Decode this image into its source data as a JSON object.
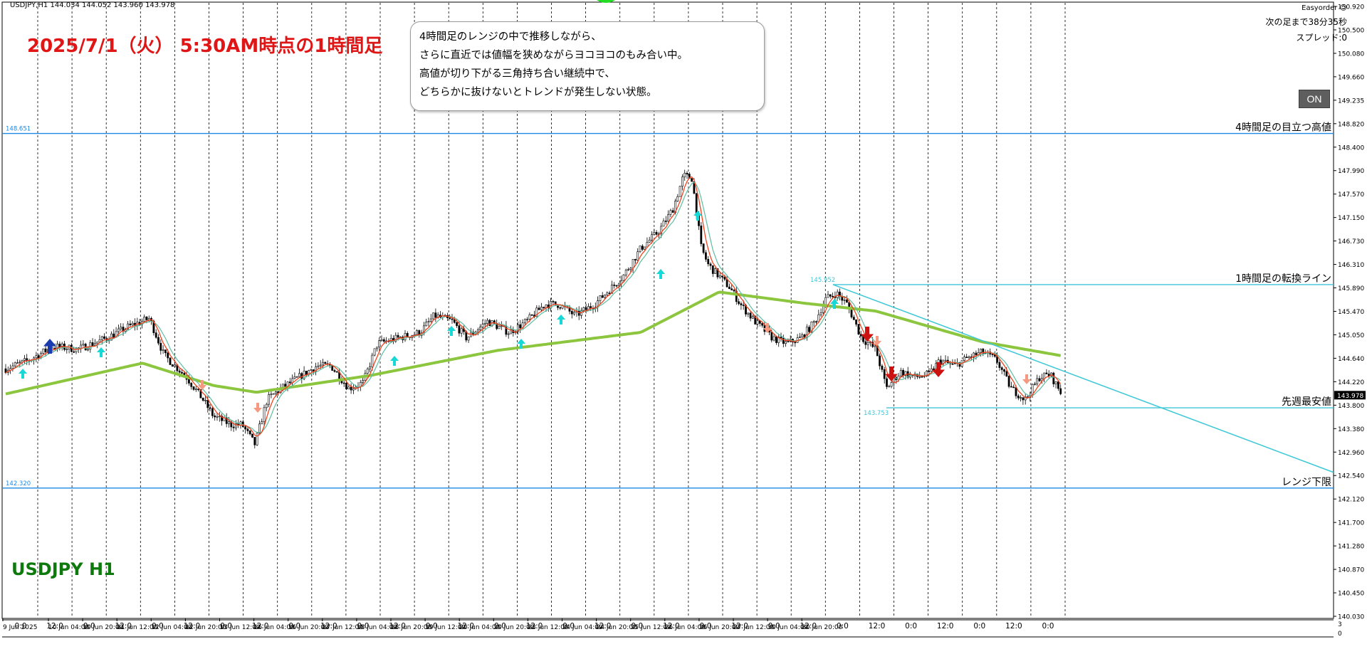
{
  "header": {
    "symbol_info": "USDJPY,H1  144.034 144.052 143.960 143.978",
    "main_title": "2025/7/1（火） 5:30AM時点の1時間足",
    "symbol_label": "USDJPY H1"
  },
  "annotation": {
    "lines": [
      "4時間足のレンジの中で推移しながら、",
      "さらに直近では値幅を狭めながらヨコヨコのもみ合い中。",
      "高値が切り下がる三角持ち合い継続中で、",
      "どちらかに抜けないとトレンドが発生しない状態。"
    ]
  },
  "ea_panel": {
    "name": "Easyorder",
    "next_bar": "次の足まで38分35秒",
    "spread": "スプレッド:0",
    "on_label": "ON"
  },
  "horizontal_lines": [
    {
      "name": "h4-high",
      "price": 148.651,
      "price_label": "148.651",
      "label": "4時間足の目立つ高値",
      "color": "#1e88e5"
    },
    {
      "name": "h1-turn",
      "price": 145.952,
      "price_label": "145.952",
      "label": "1時間足の転換ライン",
      "color": "#3ec7d6"
    },
    {
      "name": "last-week-low",
      "price": 143.753,
      "price_label": "143.753",
      "label": "先週最安値",
      "color": "#3ec7d6"
    },
    {
      "name": "range-low",
      "price": 142.32,
      "price_label": "142.320",
      "label": "レンジ下限",
      "color": "#1e88e5"
    }
  ],
  "current_price": "143.978",
  "price_axis": [
    "150.920",
    "150.500",
    "150.080",
    "149.660",
    "149.235",
    "148.820",
    "148.400",
    "147.990",
    "147.570",
    "147.150",
    "146.730",
    "146.310",
    "145.890",
    "145.470",
    "145.050",
    "144.640",
    "144.220",
    "143.800",
    "143.380",
    "142.960",
    "142.540",
    "142.120",
    "141.700",
    "141.280",
    "140.870",
    "140.450",
    "140.030"
  ],
  "time_axis": [
    "9 Jun 2025",
    "10 Jun 04:00",
    "10 Jun 20:00",
    "11 Jun 12:00",
    "12 Jun 04:00",
    "12 Jun 20:00",
    "13 Jun 12:00",
    "16 Jun 04:00",
    "16 Jun 20:00",
    "17 Jun 12:00",
    "18 Jun 04:00",
    "18 Jun 20:00",
    "19 Jun 12:00",
    "20 Jun 04:00",
    "20 Jun 20:00",
    "23 Jun 12:00",
    "24 Jun 04:00",
    "24 Jun 20:00",
    "25 Jun 12:00",
    "26 Jun 04:00",
    "26 Jun 20:00",
    "27 Jun 12:00",
    "30 Jun 04:00",
    "30 Jun 20:00"
  ],
  "sub_axis": [
    "0:0",
    "12:0",
    "0:0",
    "12:0",
    "0:0",
    "12:0",
    "0:0",
    "12:0",
    "0:0",
    "12:0",
    "0:0",
    "12:0",
    "0:0",
    "12:0",
    "0:0",
    "12:0",
    "0:0",
    "12:0",
    "0:0",
    "12:0",
    "0:0",
    "12:0",
    "0:0",
    "12:0",
    "0:0",
    "12:0",
    "0:0",
    "12:0",
    "0:0",
    "12:0",
    "0:0"
  ],
  "sub_axis_scale": [
    "3",
    "0"
  ],
  "colors": {
    "ma_long": "#8cc63f",
    "ma_fast": "#f0431e",
    "ma_mid": "#5fbda0",
    "trend": "#3ec7d6",
    "buy_arrow": "#17d7d7",
    "sell_arrow": "#f59a80"
  }
}
